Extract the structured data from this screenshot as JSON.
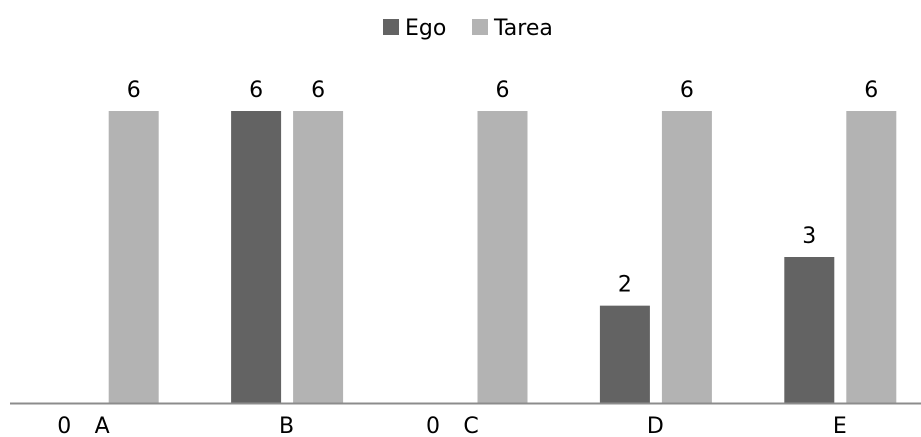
{
  "chart_data": {
    "type": "bar",
    "categories": [
      "A",
      "B",
      "C",
      "D",
      "E"
    ],
    "series": [
      {
        "name": "Ego",
        "values": [
          0,
          6,
          0,
          2,
          3
        ],
        "data_labels": [
          "0",
          "6",
          "0",
          "2",
          "3"
        ],
        "color": "#636363"
      },
      {
        "name": "Tarea",
        "values": [
          6,
          6,
          6,
          6,
          6
        ],
        "data_labels": [
          "6",
          "6",
          "6",
          "6",
          "6"
        ],
        "color": "#b3b3b3"
      }
    ],
    "ylim": [
      0,
      6
    ],
    "grid": false,
    "legend_position": "top-center",
    "axis_color": "#8c8c8c"
  }
}
